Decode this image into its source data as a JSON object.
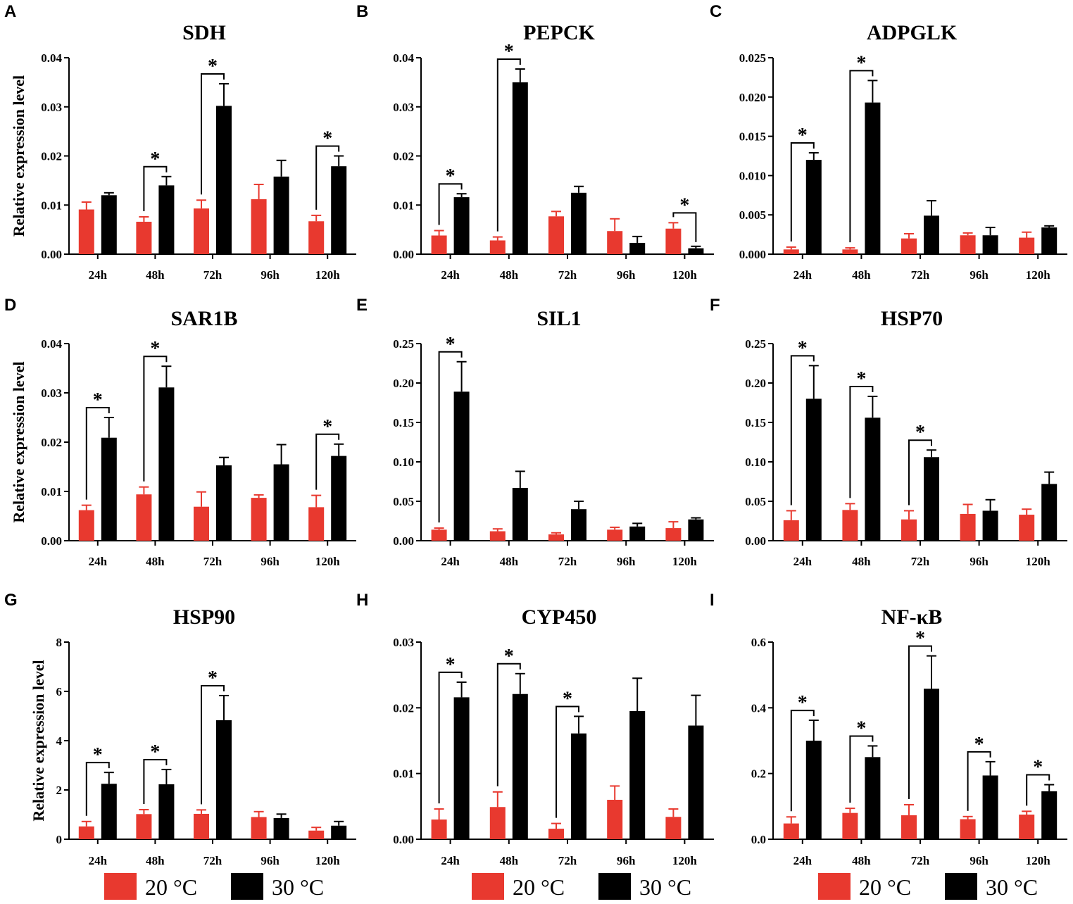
{
  "colors": {
    "c20": "#e8392f",
    "c30": "#000000"
  },
  "legend": [
    {
      "label": "20 °C",
      "color": "#e8392f"
    },
    {
      "label": "30 °C",
      "color": "#000000"
    }
  ],
  "chart_data": [
    {
      "type": "bar",
      "panel": "A",
      "title": "SDH",
      "ylabel": "Relative expression level",
      "categories": [
        "24h",
        "48h",
        "72h",
        "96h",
        "120h"
      ],
      "ylim": [
        0,
        0.04
      ],
      "yticks": [
        "0.00",
        "0.01",
        "0.02",
        "0.03",
        "0.04"
      ],
      "series": [
        {
          "name": "20 °C",
          "values": [
            0.0091,
            0.0066,
            0.0093,
            0.0112,
            0.0067
          ],
          "errors": [
            0.0015,
            0.001,
            0.0017,
            0.003,
            0.0012
          ]
        },
        {
          "name": "30 °C",
          "values": [
            0.012,
            0.014,
            0.0302,
            0.0158,
            0.0179
          ],
          "errors": [
            0.0005,
            0.0018,
            0.0045,
            0.0033,
            0.0021
          ]
        }
      ],
      "significance": [
        false,
        true,
        true,
        false,
        true
      ]
    },
    {
      "type": "bar",
      "panel": "B",
      "title": "PEPCK",
      "ylabel": "",
      "categories": [
        "24h",
        "48h",
        "72h",
        "96h",
        "120h"
      ],
      "ylim": [
        0,
        0.04
      ],
      "yticks": [
        "0.00",
        "0.01",
        "0.02",
        "0.03",
        "0.04"
      ],
      "series": [
        {
          "name": "20 °C",
          "values": [
            0.0038,
            0.0028,
            0.0077,
            0.0047,
            0.0052
          ],
          "errors": [
            0.001,
            0.0007,
            0.001,
            0.0025,
            0.0012
          ]
        },
        {
          "name": "30 °C",
          "values": [
            0.0116,
            0.035,
            0.0125,
            0.0023,
            0.0012
          ],
          "errors": [
            0.0007,
            0.0027,
            0.0013,
            0.0013,
            0.0004
          ]
        }
      ],
      "significance": [
        true,
        true,
        false,
        false,
        true
      ]
    },
    {
      "type": "bar",
      "panel": "C",
      "title": "ADPGLK",
      "ylabel": "",
      "categories": [
        "24h",
        "48h",
        "72h",
        "96h",
        "120h"
      ],
      "ylim": [
        0,
        0.025
      ],
      "yticks": [
        "0.000",
        "0.005",
        "0.010",
        "0.015",
        "0.020",
        "0.025"
      ],
      "series": [
        {
          "name": "20 °C",
          "values": [
            0.0006,
            0.0006,
            0.002,
            0.0024,
            0.0021
          ],
          "errors": [
            0.0003,
            0.0002,
            0.0006,
            0.0003,
            0.0007
          ]
        },
        {
          "name": "30 °C",
          "values": [
            0.012,
            0.0193,
            0.0049,
            0.0024,
            0.0034
          ],
          "errors": [
            0.0009,
            0.0028,
            0.0019,
            0.001,
            0.0002
          ]
        }
      ],
      "significance": [
        true,
        true,
        false,
        false,
        false
      ]
    },
    {
      "type": "bar",
      "panel": "D",
      "title": "SAR1B",
      "ylabel": "Relative expression level",
      "categories": [
        "24h",
        "48h",
        "72h",
        "96h",
        "120h"
      ],
      "ylim": [
        0,
        0.04
      ],
      "yticks": [
        "0.00",
        "0.01",
        "0.02",
        "0.03",
        "0.04"
      ],
      "series": [
        {
          "name": "20 °C",
          "values": [
            0.0062,
            0.0094,
            0.0069,
            0.0087,
            0.0068
          ],
          "errors": [
            0.001,
            0.0015,
            0.003,
            0.0006,
            0.0024
          ]
        },
        {
          "name": "30 °C",
          "values": [
            0.0209,
            0.0311,
            0.0153,
            0.0155,
            0.0172
          ],
          "errors": [
            0.0041,
            0.0043,
            0.0016,
            0.004,
            0.0024
          ]
        }
      ],
      "significance": [
        true,
        true,
        false,
        false,
        true
      ]
    },
    {
      "type": "bar",
      "panel": "E",
      "title": "SIL1",
      "ylabel": "",
      "categories": [
        "24h",
        "48h",
        "72h",
        "96h",
        "120h"
      ],
      "ylim": [
        0,
        0.25
      ],
      "yticks": [
        "0.00",
        "0.05",
        "0.10",
        "0.15",
        "0.20",
        "0.25"
      ],
      "series": [
        {
          "name": "20 °C",
          "values": [
            0.014,
            0.012,
            0.008,
            0.014,
            0.016
          ],
          "errors": [
            0.002,
            0.003,
            0.002,
            0.003,
            0.008
          ]
        },
        {
          "name": "30 °C",
          "values": [
            0.189,
            0.067,
            0.04,
            0.018,
            0.027
          ],
          "errors": [
            0.038,
            0.021,
            0.01,
            0.004,
            0.002
          ]
        }
      ],
      "significance": [
        true,
        false,
        false,
        false,
        false
      ]
    },
    {
      "type": "bar",
      "panel": "F",
      "title": "HSP70",
      "ylabel": "",
      "categories": [
        "24h",
        "48h",
        "72h",
        "96h",
        "120h"
      ],
      "ylim": [
        0,
        0.25
      ],
      "yticks": [
        "0.00",
        "0.05",
        "0.10",
        "0.15",
        "0.20",
        "0.25"
      ],
      "series": [
        {
          "name": "20 °C",
          "values": [
            0.026,
            0.039,
            0.027,
            0.034,
            0.033
          ],
          "errors": [
            0.012,
            0.008,
            0.011,
            0.012,
            0.007
          ]
        },
        {
          "name": "30 °C",
          "values": [
            0.18,
            0.156,
            0.106,
            0.038,
            0.072
          ],
          "errors": [
            0.042,
            0.027,
            0.009,
            0.014,
            0.015
          ]
        }
      ],
      "significance": [
        true,
        true,
        true,
        false,
        false
      ]
    },
    {
      "type": "bar",
      "panel": "G",
      "title": "HSP90",
      "ylabel": "Relative expression level",
      "categories": [
        "24h",
        "48h",
        "72h",
        "96h",
        "120h"
      ],
      "ylim": [
        0,
        8
      ],
      "yticks": [
        "0",
        "2",
        "4",
        "6",
        "8"
      ],
      "series": [
        {
          "name": "20 °C",
          "values": [
            0.52,
            1.02,
            1.03,
            0.9,
            0.35
          ],
          "errors": [
            0.2,
            0.18,
            0.16,
            0.22,
            0.13
          ]
        },
        {
          "name": "30 °C",
          "values": [
            2.25,
            2.23,
            4.83,
            0.86,
            0.55
          ],
          "errors": [
            0.46,
            0.6,
            1.0,
            0.16,
            0.17
          ]
        }
      ],
      "significance": [
        true,
        true,
        true,
        false,
        false
      ]
    },
    {
      "type": "bar",
      "panel": "H",
      "title": "CYP450",
      "ylabel": "",
      "categories": [
        "24h",
        "48h",
        "72h",
        "96h",
        "120h"
      ],
      "ylim": [
        0,
        0.03
      ],
      "yticks": [
        "0.00",
        "0.01",
        "0.02",
        "0.03"
      ],
      "series": [
        {
          "name": "20 °C",
          "values": [
            0.003,
            0.0049,
            0.0016,
            0.006,
            0.0034
          ],
          "errors": [
            0.0016,
            0.0023,
            0.0008,
            0.0021,
            0.0012
          ]
        },
        {
          "name": "30 °C",
          "values": [
            0.0216,
            0.0221,
            0.0161,
            0.0195,
            0.0173
          ],
          "errors": [
            0.0023,
            0.0031,
            0.0026,
            0.005,
            0.0046
          ]
        }
      ],
      "significance": [
        true,
        true,
        true,
        false,
        false
      ]
    },
    {
      "type": "bar",
      "panel": "I",
      "title": "NF-κB",
      "ylabel": "",
      "categories": [
        "24h",
        "48h",
        "72h",
        "96h",
        "120h"
      ],
      "ylim": [
        0,
        0.6
      ],
      "yticks": [
        "0.0",
        "0.2",
        "0.4",
        "0.6"
      ],
      "series": [
        {
          "name": "20 °C",
          "values": [
            0.048,
            0.08,
            0.073,
            0.061,
            0.075
          ],
          "errors": [
            0.02,
            0.014,
            0.032,
            0.008,
            0.01
          ]
        },
        {
          "name": "30 °C",
          "values": [
            0.3,
            0.25,
            0.458,
            0.194,
            0.146
          ],
          "errors": [
            0.062,
            0.034,
            0.1,
            0.042,
            0.02
          ]
        }
      ],
      "significance": [
        true,
        true,
        true,
        true,
        true
      ]
    }
  ]
}
